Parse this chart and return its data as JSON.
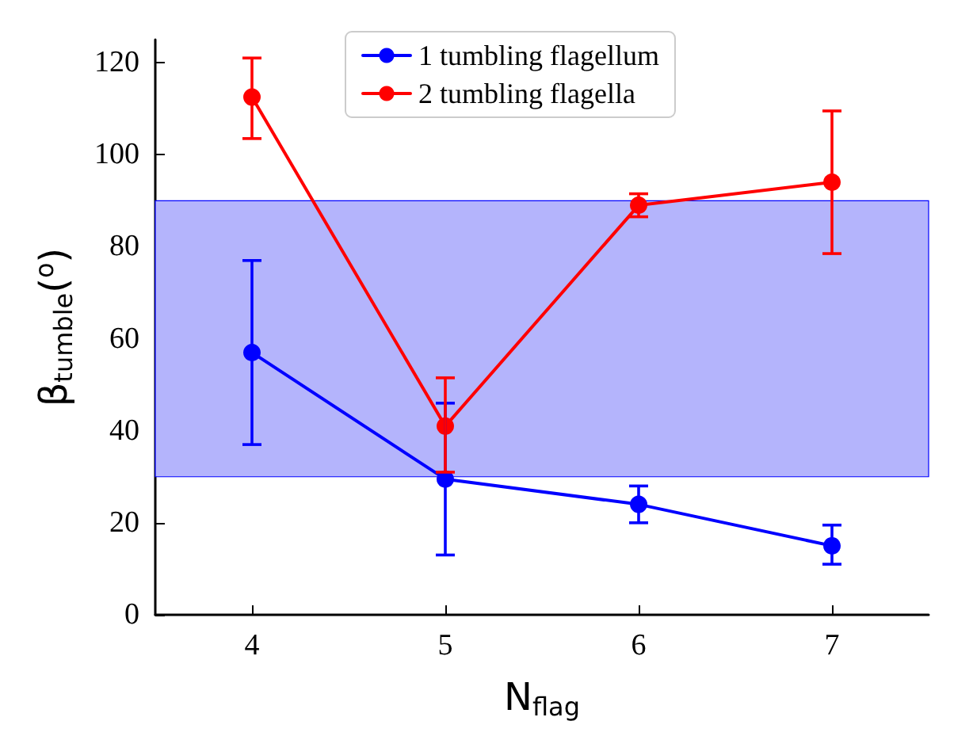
{
  "chart_data": {
    "type": "line",
    "xlabel": "N$_{flag}$",
    "ylabel": "β$_{tumble}$($^{o}$)",
    "x": [
      4,
      5,
      6,
      7
    ],
    "series": [
      {
        "name": "1 tumbling flagellum",
        "color": "#0000ff",
        "values": [
          57,
          29.5,
          24,
          15
        ],
        "errors": [
          [
            37,
            77
          ],
          [
            13,
            46
          ],
          [
            20,
            28
          ],
          [
            11,
            19.5
          ]
        ]
      },
      {
        "name": "2 tumbling flagella",
        "color": "#ff0000",
        "values": [
          112.5,
          41,
          89,
          94
        ],
        "errors": [
          [
            103.5,
            121
          ],
          [
            31,
            51.5
          ],
          [
            86.5,
            91.5
          ],
          [
            78.5,
            109.5
          ]
        ]
      }
    ],
    "xlim": [
      3.5,
      7.5
    ],
    "xticks": [
      4,
      5,
      6,
      7
    ],
    "ylim": [
      0,
      125
    ],
    "yticks": [
      0,
      20,
      40,
      60,
      80,
      100,
      120
    ],
    "bands": [
      {
        "axis": "y",
        "from": 30,
        "to": 90,
        "color": "#b4b4fc"
      }
    ],
    "legend": "top",
    "marker": "circle",
    "line_style": "solid",
    "grid": false
  }
}
